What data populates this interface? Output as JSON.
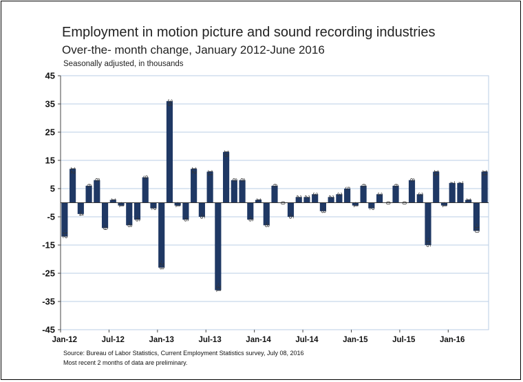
{
  "chart_data": {
    "type": "bar",
    "title": "Employment in motion picture and sound recording industries",
    "subtitle": "Over-the- month change, January 2012-June 2016",
    "unit_note": "Seasonally adjusted, in thousands",
    "ylim": [
      -45,
      45
    ],
    "yticks": [
      45,
      35,
      25,
      15,
      5,
      -5,
      -15,
      -25,
      -35,
      -45
    ],
    "xtick_labels": [
      {
        "index": 0,
        "label": "Jan-12"
      },
      {
        "index": 6,
        "label": "Jul-12"
      },
      {
        "index": 12,
        "label": "Jan-13"
      },
      {
        "index": 18,
        "label": "Jul-13"
      },
      {
        "index": 24,
        "label": "Jan-14"
      },
      {
        "index": 30,
        "label": "Jul-14"
      },
      {
        "index": 36,
        "label": "Jan-15"
      },
      {
        "index": 42,
        "label": "Jul-15"
      },
      {
        "index": 48,
        "label": "Jan-16"
      }
    ],
    "values": [
      -12,
      12,
      -4,
      6,
      8,
      -9,
      1,
      -1,
      -8,
      -6,
      9,
      -2,
      -23,
      36,
      -1,
      -6,
      12,
      -5,
      11,
      -31,
      18,
      8,
      8,
      -6,
      1,
      -8,
      6,
      0,
      -5,
      2,
      2,
      3,
      -3,
      2,
      3,
      5,
      -1,
      6,
      -2,
      3,
      0,
      6,
      0,
      8,
      3,
      -15,
      11,
      -1,
      7,
      7,
      1,
      -10,
      11
    ],
    "labels": [
      "-12",
      "12",
      "-4",
      "6",
      "8",
      "-9",
      "1",
      "-1",
      "-8",
      "-6",
      "9",
      "-2",
      "-23",
      "36",
      "-1",
      "-6",
      "12",
      "-5",
      "11",
      "-31",
      "18",
      "8",
      "8",
      "-6",
      "1",
      "-8",
      "6",
      "0",
      "-5",
      "2",
      "2",
      "3",
      "-3",
      "2",
      "3",
      "5",
      "-1",
      "6",
      "-2",
      "3",
      "0",
      "6",
      "0",
      "8",
      "3",
      "-15",
      "11",
      "-1",
      "7",
      "7",
      "1",
      "-10",
      "11"
    ],
    "grid": true,
    "bar_color": "#1f3864",
    "grid_color": "#b8cce4"
  },
  "footer": {
    "source": "Source: Bureau of Labor Statistics, Current Employment Statistics survey, July 08, 2016",
    "note": "Most recent 2 months of data are preliminary."
  }
}
